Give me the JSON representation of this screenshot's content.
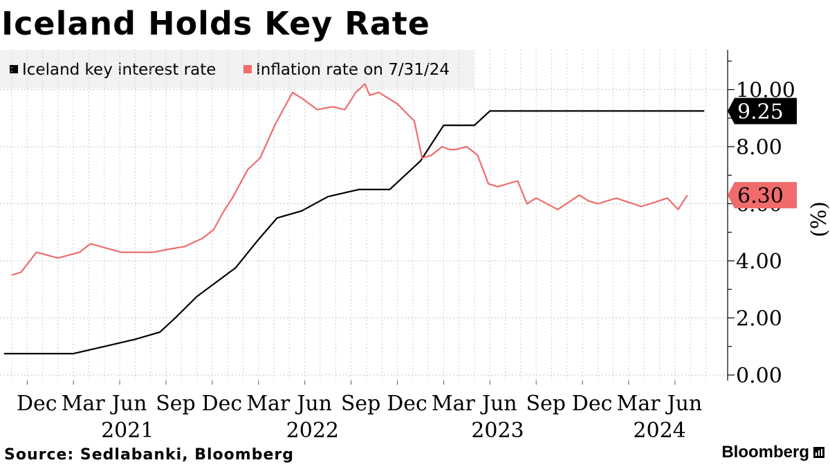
{
  "title": "Iceland Holds Key Rate",
  "legend": [
    {
      "label": "Iceland key interest rate",
      "color": "#000000"
    },
    {
      "label": "Inflation rate on 7/31/24",
      "color": "#f06b6b"
    }
  ],
  "source": "Source: Sedlabanki, Bloomberg",
  "brand": "Bloomberg",
  "chart_data": {
    "type": "line",
    "title": "Iceland Holds Key Rate",
    "xlabel": "",
    "ylabel": "(%)",
    "ylim": [
      0,
      11.5
    ],
    "yticks": [
      0,
      2,
      4,
      6,
      8,
      10
    ],
    "ytick_labels": [
      "0.00",
      "2.00",
      "4.00",
      "6.00",
      "8.00",
      "10.00"
    ],
    "x_unit": "month index (0 = Nov 2020)",
    "xlim": [
      -0.5,
      45
    ],
    "x_ticks": [
      {
        "month": 1,
        "label": "Dec"
      },
      {
        "month": 4,
        "label": "Mar"
      },
      {
        "month": 7,
        "label": "Jun"
      },
      {
        "month": 10,
        "label": "Sep"
      },
      {
        "month": 13,
        "label": "Dec"
      },
      {
        "month": 16,
        "label": "Mar"
      },
      {
        "month": 19,
        "label": "Jun"
      },
      {
        "month": 22,
        "label": "Sep"
      },
      {
        "month": 25,
        "label": "Dec"
      },
      {
        "month": 28,
        "label": "Mar"
      },
      {
        "month": 31,
        "label": "Jun"
      },
      {
        "month": 34,
        "label": "Sep"
      },
      {
        "month": 37,
        "label": "Dec"
      },
      {
        "month": 40,
        "label": "Mar"
      },
      {
        "month": 43,
        "label": "Jun"
      }
    ],
    "year_labels": [
      {
        "month": 7.5,
        "label": "2021"
      },
      {
        "month": 19.5,
        "label": "2022"
      },
      {
        "month": 31.5,
        "label": "2023"
      },
      {
        "month": 42,
        "label": "2024"
      }
    ],
    "series": [
      {
        "name": "Iceland key interest rate",
        "color": "#000000",
        "last_value_label": "9.25",
        "x": [
          -0.5,
          4,
          6,
          8,
          9.6,
          10.6,
          12,
          14.5,
          16,
          17.2,
          18.8,
          20.5,
          22.5,
          24.5,
          26.5,
          28,
          30,
          31,
          32.7,
          44.9
        ],
        "values": [
          0.75,
          0.75,
          1.0,
          1.25,
          1.5,
          2.0,
          2.75,
          3.75,
          4.75,
          5.5,
          5.75,
          6.25,
          6.5,
          6.5,
          7.5,
          8.75,
          8.75,
          9.25,
          9.25,
          9.25
        ]
      },
      {
        "name": "Inflation rate on 7/31/24",
        "color": "#f06b6b",
        "last_value_label": "6.30",
        "x": [
          0,
          0.6,
          1.6,
          3,
          4.4,
          5.1,
          7.1,
          9.2,
          10.1,
          11.2,
          12.4,
          13.1,
          13.7,
          14.3,
          15.3,
          16.1,
          17.1,
          18.2,
          18.8,
          19.8,
          20.8,
          21.6,
          22.3,
          22.9,
          23.2,
          23.8,
          25.0,
          26.1,
          26.6,
          27.2,
          27.9,
          28.4,
          28.8,
          29.5,
          30.2,
          30.9,
          31.5,
          32.8,
          33.4,
          34.0,
          35.4,
          36.8,
          37.4,
          38.0,
          39.2,
          39.7,
          40.3,
          40.8,
          41.4,
          42.5,
          43.2,
          43.8
        ],
        "values": [
          3.5,
          3.6,
          4.3,
          4.1,
          4.3,
          4.6,
          4.3,
          4.3,
          4.4,
          4.5,
          4.8,
          5.1,
          5.7,
          6.2,
          7.2,
          7.6,
          8.8,
          9.9,
          9.7,
          9.3,
          9.4,
          9.3,
          9.9,
          10.2,
          9.8,
          9.9,
          9.5,
          8.9,
          7.6,
          7.7,
          8.0,
          7.9,
          7.9,
          8.0,
          7.7,
          6.7,
          6.6,
          6.8,
          6.0,
          6.2,
          5.8,
          6.3,
          6.1,
          6.0,
          6.2,
          6.1,
          6.0,
          5.9,
          6.0,
          6.2,
          5.8,
          6.3
        ]
      }
    ]
  }
}
